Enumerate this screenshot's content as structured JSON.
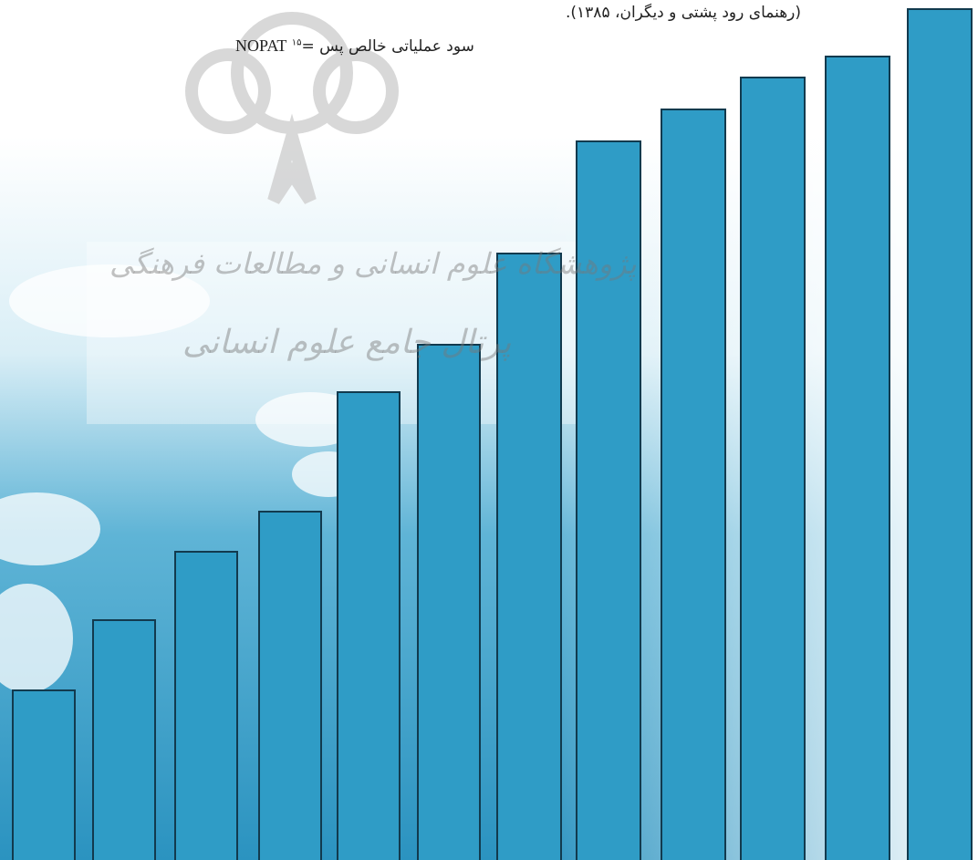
{
  "header": {
    "citation": "(رهنمای رود پشتی و دیگران، ۱۳۸۵).",
    "nopat": {
      "term": "NOPAT",
      "footnote": "۱۵",
      "definition": "= سود عملیاتی خالص پس"
    }
  },
  "watermark": {
    "line1": "پژوهشگاه علوم انسانی و مطالعات فرهنگی",
    "line2": "پرتال جامع علوم انسانی"
  }
}
